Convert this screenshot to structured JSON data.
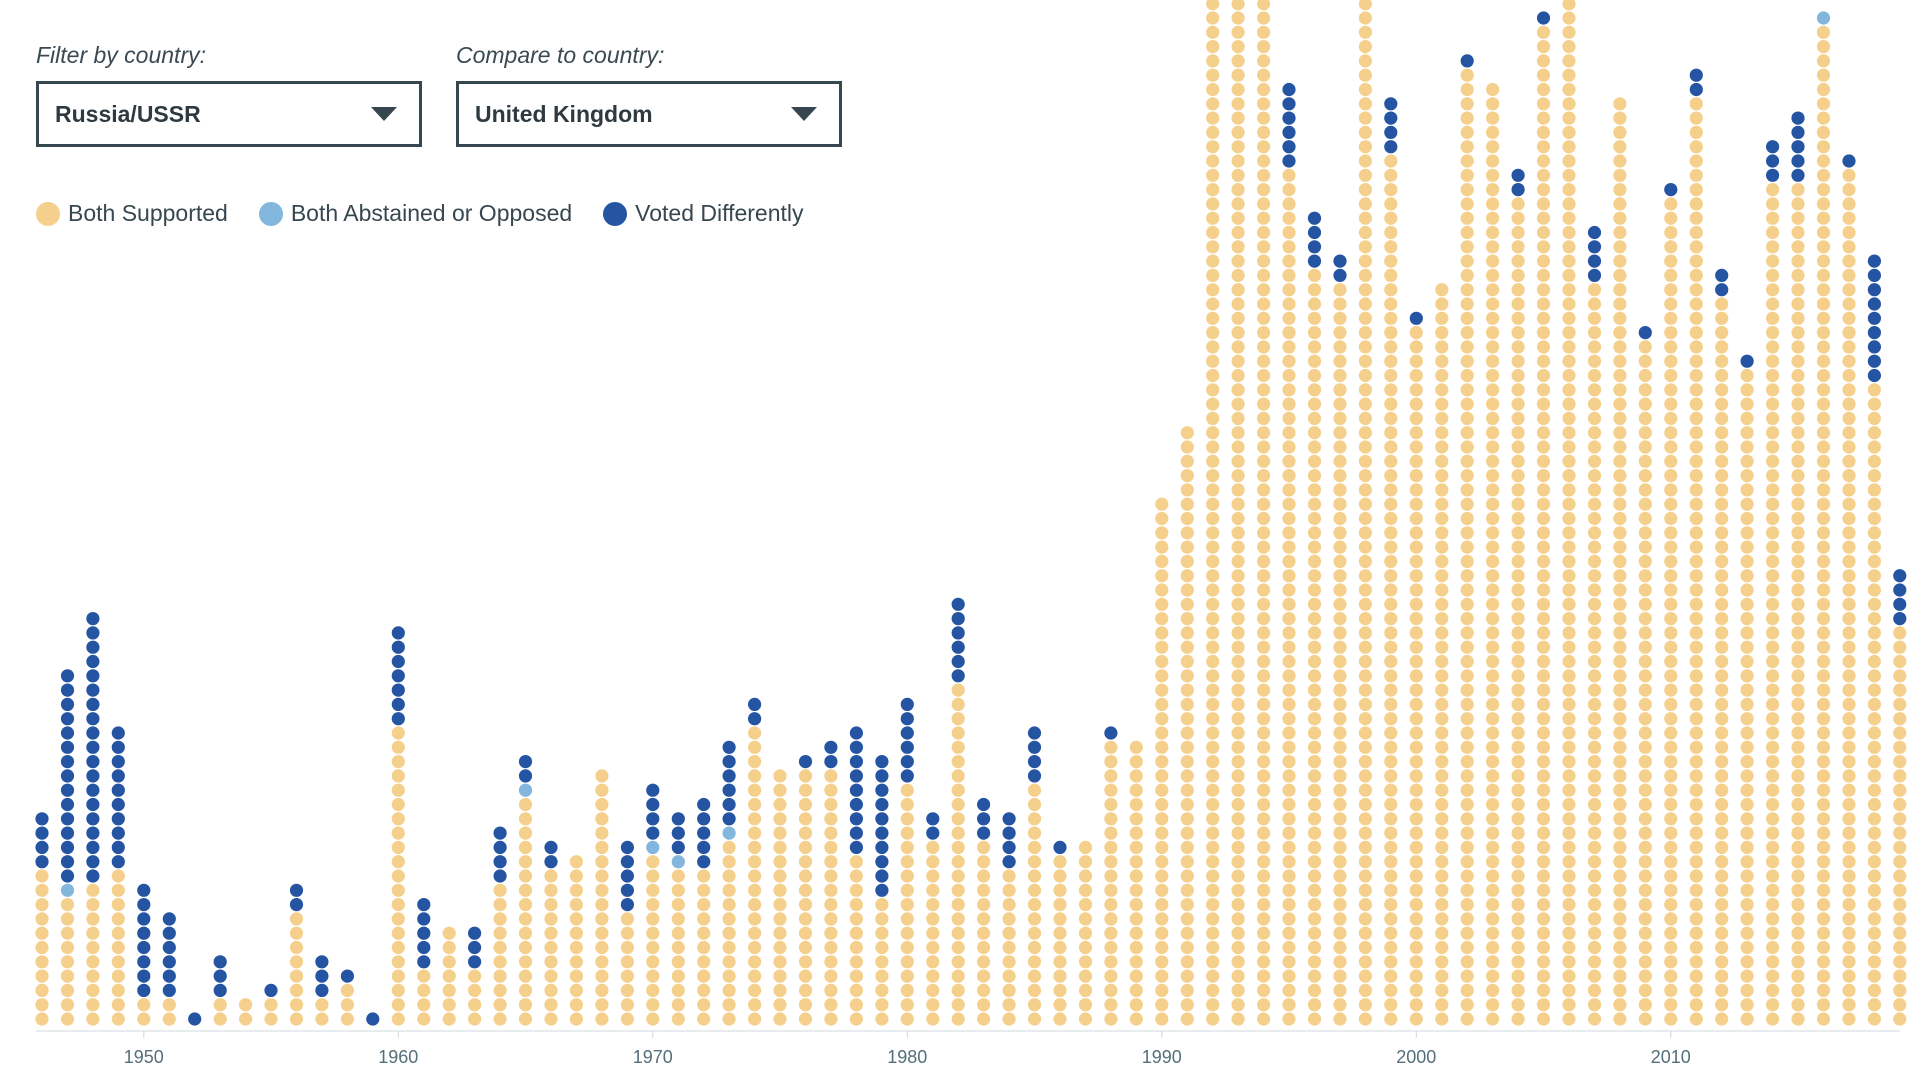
{
  "filters": {
    "filter": {
      "label": "Filter by country:",
      "value": "Russia/USSR"
    },
    "compare": {
      "label": "Compare to country:",
      "value": "United Kingdom"
    }
  },
  "icons": {
    "dropdown": "triangle-down-icon"
  },
  "colors": {
    "both_supported": "#f5d08c",
    "both_abstained": "#82b6dc",
    "voted_differently": "#2454a2",
    "axis": "#cfd8dc",
    "tick_text": "#546e7a"
  },
  "legend": [
    {
      "key": "both_supported",
      "label": "Both Supported"
    },
    {
      "key": "both_abstained",
      "label": "Both Abstained or Opposed"
    },
    {
      "key": "voted_differently",
      "label": "Voted Differently"
    }
  ],
  "chart_data": {
    "type": "dot-stack",
    "title": "",
    "xlabel": "",
    "ylabel": "",
    "x_ticks": [
      1950,
      1960,
      1970,
      1980,
      1990,
      2000,
      2010
    ],
    "series": [
      {
        "name": "Both Supported",
        "key": "both_supported"
      },
      {
        "name": "Both Abstained or Opposed",
        "key": "both_abstained"
      },
      {
        "name": "Voted Differently",
        "key": "voted_differently"
      }
    ],
    "years": [
      1946,
      1947,
      1948,
      1949,
      1950,
      1951,
      1952,
      1953,
      1954,
      1955,
      1956,
      1957,
      1958,
      1959,
      1960,
      1961,
      1962,
      1963,
      1964,
      1965,
      1966,
      1967,
      1968,
      1969,
      1970,
      1971,
      1972,
      1973,
      1974,
      1975,
      1976,
      1977,
      1978,
      1979,
      1980,
      1981,
      1982,
      1983,
      1984,
      1985,
      1986,
      1987,
      1988,
      1989,
      1990,
      1991,
      1992,
      1993,
      1994,
      1995,
      1996,
      1997,
      1998,
      1999,
      2000,
      2001,
      2002,
      2003,
      2004,
      2005,
      2006,
      2007,
      2008,
      2009,
      2010,
      2011,
      2012,
      2013,
      2014,
      2015,
      2016,
      2017,
      2018,
      2019
    ],
    "both_supported": [
      11,
      9,
      10,
      11,
      2,
      2,
      0,
      2,
      2,
      2,
      8,
      2,
      3,
      0,
      21,
      4,
      7,
      4,
      10,
      16,
      11,
      12,
      18,
      8,
      12,
      11,
      11,
      13,
      21,
      18,
      18,
      18,
      12,
      9,
      17,
      13,
      24,
      13,
      11,
      17,
      12,
      13,
      20,
      20,
      37,
      42,
      72,
      72,
      72,
      60,
      53,
      52,
      72,
      61,
      49,
      52,
      67,
      66,
      58,
      70,
      72,
      52,
      65,
      48,
      58,
      65,
      51,
      46,
      59,
      59,
      70,
      60,
      45,
      28
    ],
    "both_abstained": [
      0,
      1,
      0,
      0,
      0,
      0,
      0,
      0,
      0,
      0,
      0,
      0,
      0,
      0,
      0,
      0,
      0,
      0,
      0,
      1,
      0,
      0,
      0,
      0,
      1,
      1,
      0,
      1,
      0,
      0,
      0,
      0,
      0,
      0,
      0,
      0,
      0,
      0,
      0,
      0,
      0,
      0,
      0,
      0,
      0,
      0,
      0,
      0,
      0,
      0,
      0,
      0,
      0,
      0,
      0,
      0,
      0,
      0,
      0,
      0,
      0,
      0,
      0,
      0,
      0,
      0,
      0,
      0,
      0,
      0,
      1,
      0,
      0,
      0
    ],
    "voted_differently": [
      4,
      15,
      19,
      10,
      8,
      6,
      1,
      3,
      0,
      1,
      2,
      3,
      1,
      1,
      7,
      5,
      0,
      3,
      4,
      2,
      2,
      0,
      0,
      5,
      4,
      3,
      5,
      6,
      2,
      0,
      1,
      2,
      9,
      10,
      6,
      2,
      6,
      3,
      4,
      4,
      1,
      0,
      1,
      0,
      0,
      0,
      0,
      0,
      0,
      6,
      4,
      2,
      2,
      4,
      1,
      0,
      1,
      0,
      2,
      1,
      0,
      4,
      0,
      1,
      1,
      2,
      2,
      1,
      3,
      5,
      0,
      1,
      9,
      4
    ]
  }
}
